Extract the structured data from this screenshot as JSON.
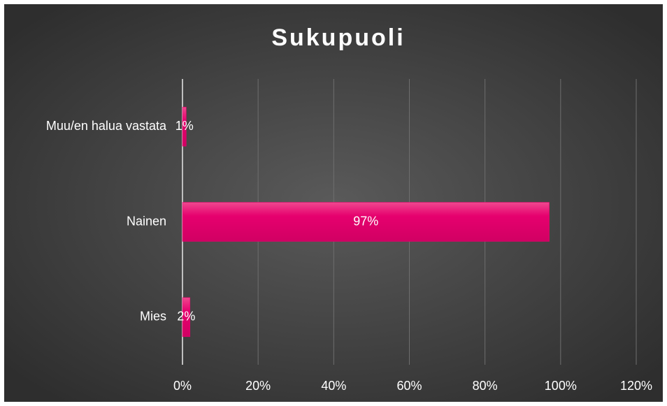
{
  "chart_data": {
    "type": "bar",
    "orientation": "horizontal",
    "title": "Sukupuoli",
    "categories": [
      "Muu/en halua vastata",
      "Nainen",
      "Mies"
    ],
    "values": [
      1,
      97,
      2
    ],
    "value_labels": [
      "1%",
      "97%",
      "2%"
    ],
    "color": "#e6006e",
    "xlim": [
      0,
      120
    ],
    "xticks": [
      {
        "value": 0,
        "label": "0%"
      },
      {
        "value": 20,
        "label": "20%"
      },
      {
        "value": 40,
        "label": "40%"
      },
      {
        "value": 60,
        "label": "60%"
      },
      {
        "value": 80,
        "label": "80%"
      },
      {
        "value": 100,
        "label": "100%"
      },
      {
        "value": 120,
        "label": "120%"
      }
    ],
    "grid": true
  }
}
